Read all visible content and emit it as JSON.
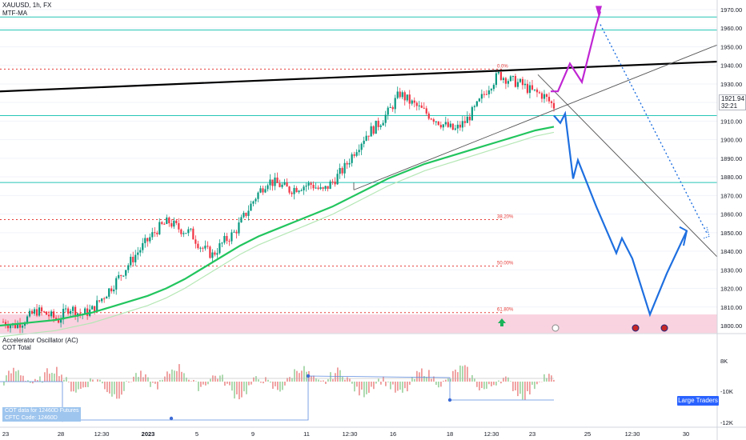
{
  "header": {
    "symbol_line": "XAUUSD, 1h, FX",
    "ma_label": "MTF-MA"
  },
  "indicator": {
    "title": "Accelerator Oscillator (AC)",
    "sub": "COT Total"
  },
  "cot": {
    "line1": "COT data for 12460D Futures",
    "line2": "CFTC Code: 12460D"
  },
  "badge": {
    "large_traders": "Large Traders"
  },
  "price_tag": {
    "price": "1921.94",
    "countdown": "32:21"
  },
  "colors": {
    "candle_up": "#089981",
    "candle_down": "#f23645",
    "ma_fast": "#22c55e",
    "ma_slow": "#b5e7b5",
    "teal": "#26c6b6",
    "black_line": "#000000",
    "projection_blue": "#1e6fe0",
    "projection_purple": "#c026d3",
    "fib": "#e53935",
    "zone": "#f8c8d8",
    "grid": "#f0f3fa"
  },
  "chart_data": {
    "type": "candlestick",
    "symbol": "XAUUSD",
    "timeframe": "1h",
    "ylim": [
      1795,
      1975
    ],
    "y_ticks": [
      1800,
      1810,
      1820,
      1830,
      1840,
      1850,
      1860,
      1870,
      1880,
      1890,
      1900,
      1910,
      1920,
      1930,
      1940,
      1950,
      1960,
      1970
    ],
    "x_ticks": [
      "23",
      "28",
      "12:30",
      "2023",
      "5",
      "9",
      "11",
      "12:30",
      "16",
      "18",
      "12:30",
      "23",
      "25",
      "12:30",
      "30"
    ],
    "horizontal_levels": [
      1966,
      1959,
      1913,
      1877
    ],
    "fib_levels": [
      {
        "label": "0.0%",
        "price": 1938
      },
      {
        "label": "38.20%",
        "price": 1857
      },
      {
        "label": "50.00%",
        "price": 1832
      },
      {
        "label": "61.80%",
        "price": 1807
      }
    ],
    "close_series": [
      1802,
      1800,
      1803,
      1808,
      1806,
      1803,
      1810,
      1806,
      1808,
      1815,
      1822,
      1830,
      1838,
      1845,
      1852,
      1856,
      1852,
      1850,
      1842,
      1838,
      1845,
      1850,
      1860,
      1870,
      1878,
      1876,
      1873,
      1875,
      1876,
      1872,
      1878,
      1885,
      1895,
      1903,
      1908,
      1915,
      1925,
      1920,
      1916,
      1912,
      1908,
      1905,
      1910,
      1918,
      1928,
      1935,
      1932,
      1930,
      1926,
      1924,
      1918
    ],
    "ma_fast": [
      1800,
      1801,
      1802,
      1803,
      1805,
      1807,
      1810,
      1813,
      1816,
      1820,
      1825,
      1831,
      1837,
      1843,
      1848,
      1852,
      1856,
      1860,
      1864,
      1869,
      1874,
      1879,
      1883,
      1887,
      1890,
      1893,
      1896,
      1899,
      1902,
      1905,
      1907
    ],
    "projection_bearish": [
      1913,
      1909,
      1914,
      1879,
      1889,
      1864,
      1839,
      1847,
      1836,
      1806,
      1828,
      1851
    ],
    "projection_bullish": [
      1926,
      1926,
      1941,
      1931,
      1962,
      1969
    ],
    "ac_y_ticks": [
      "8K",
      "-10K",
      "-12K"
    ]
  }
}
